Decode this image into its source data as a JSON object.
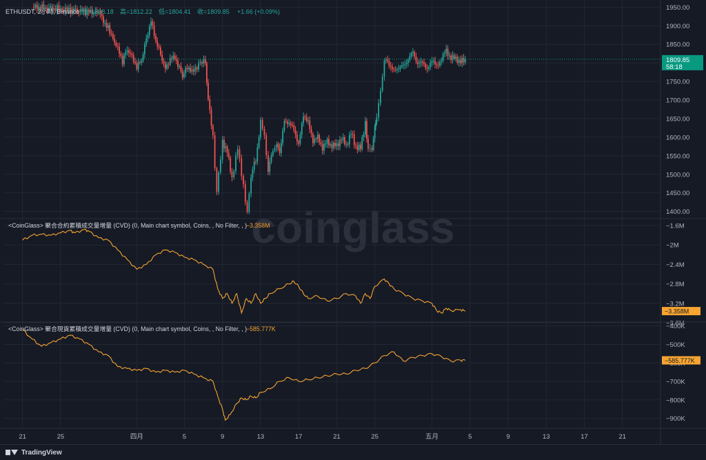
{
  "watermark": "coinglass",
  "footer": {
    "brand": "TradingView",
    "logo_icon": "tradingview-logo-icon"
  },
  "colors": {
    "background": "#161a25",
    "grid": "#232734",
    "text": "#b2b5be",
    "up": "#26a69a",
    "down": "#ef5350",
    "cvd_line": "#f7a531",
    "price_tag": "#089981"
  },
  "chart_data": [
    {
      "type": "candlestick",
      "legend": {
        "symbol": "ETHUSDT, 2小時, Binance",
        "open": "開=1808.18",
        "high": "高=1812.22",
        "low": "低=1804.41",
        "close": "收=1809.85",
        "change": "+1.66 (+0.09%)"
      },
      "last_price": "1809.85",
      "countdown": "58:18",
      "y_ticks": [
        "1950.00",
        "1900.00",
        "1850.00",
        "1800.00",
        "1750.00",
        "1700.00",
        "1650.00",
        "1600.00",
        "1550.00",
        "1500.00",
        "1450.00",
        "1400.00"
      ],
      "ylim": [
        1390,
        1960
      ],
      "points": [
        [
          1.0,
          1950
        ],
        [
          4.0,
          1945
        ],
        [
          8.0,
          1935
        ],
        [
          9.5,
          1870
        ],
        [
          10.5,
          1805
        ],
        [
          11.0,
          1840
        ],
        [
          12.0,
          1790
        ],
        [
          12.5,
          1810
        ],
        [
          13.5,
          1915
        ],
        [
          14.0,
          1860
        ],
        [
          15.0,
          1785
        ],
        [
          15.5,
          1810
        ],
        [
          16.0,
          1815
        ],
        [
          16.8,
          1765
        ],
        [
          17.3,
          1790
        ],
        [
          17.8,
          1775
        ],
        [
          18.5,
          1795
        ],
        [
          19.2,
          1805
        ],
        [
          19.5,
          1700
        ],
        [
          20.0,
          1600
        ],
        [
          20.4,
          1450
        ],
        [
          21.0,
          1590
        ],
        [
          21.5,
          1560
        ],
        [
          22.0,
          1490
        ],
        [
          22.6,
          1570
        ],
        [
          23.2,
          1470
        ],
        [
          23.6,
          1390
        ],
        [
          24.0,
          1500
        ],
        [
          24.5,
          1540
        ],
        [
          25.0,
          1640
        ],
        [
          25.4,
          1600
        ],
        [
          25.8,
          1510
        ],
        [
          26.3,
          1570
        ],
        [
          26.7,
          1580
        ],
        [
          27.0,
          1560
        ],
        [
          27.5,
          1640
        ],
        [
          28.0,
          1640
        ],
        [
          28.5,
          1620
        ],
        [
          29.0,
          1580
        ],
        [
          29.5,
          1660
        ],
        [
          30.0,
          1640
        ],
        [
          30.5,
          1590
        ],
        [
          31.0,
          1600
        ],
        [
          31.5,
          1570
        ],
        [
          32.0,
          1590
        ],
        [
          32.5,
          1575
        ],
        [
          33.0,
          1580
        ],
        [
          33.5,
          1595
        ],
        [
          34.0,
          1580
        ],
        [
          34.5,
          1610
        ],
        [
          35.0,
          1575
        ],
        [
          35.5,
          1570
        ],
        [
          36.0,
          1640
        ],
        [
          36.3,
          1560
        ],
        [
          36.7,
          1575
        ],
        [
          37.0,
          1620
        ],
        [
          37.2,
          1660
        ],
        [
          37.6,
          1720
        ],
        [
          38.0,
          1810
        ],
        [
          38.5,
          1800
        ],
        [
          39.0,
          1775
        ],
        [
          39.5,
          1790
        ],
        [
          40.0,
          1790
        ],
        [
          40.5,
          1810
        ],
        [
          41.0,
          1830
        ],
        [
          41.5,
          1795
        ],
        [
          42.0,
          1805
        ],
        [
          42.5,
          1780
        ],
        [
          43.0,
          1810
        ],
        [
          43.5,
          1790
        ],
        [
          44.0,
          1810
        ],
        [
          44.5,
          1835
        ],
        [
          45.0,
          1810
        ],
        [
          45.5,
          1815
        ],
        [
          46.0,
          1800
        ],
        [
          46.5,
          1810
        ]
      ]
    },
    {
      "type": "line",
      "legend": "<CoinGlass> 聚合合約累積成交量增量 (CVD) (0, Main chart symbol, Coins, , No Filter, , )",
      "legend_value": "−3.358M",
      "last_label": "−3.358M",
      "y_ticks": [
        "−1.6M",
        "−2M",
        "−2.4M",
        "−2.8M",
        "−3.2M",
        "−3.6M"
      ],
      "ylim": [
        -3.6,
        -1.5
      ],
      "points": [
        [
          0.0,
          -1.9
        ],
        [
          1.0,
          -1.8
        ],
        [
          2.0,
          -1.78
        ],
        [
          3.0,
          -1.8
        ],
        [
          4.0,
          -1.75
        ],
        [
          5.0,
          -1.7
        ],
        [
          5.5,
          -1.75
        ],
        [
          6.5,
          -1.68
        ],
        [
          7.0,
          -1.72
        ],
        [
          8.0,
          -1.85
        ],
        [
          9.0,
          -1.9
        ],
        [
          10.0,
          -2.1
        ],
        [
          11.0,
          -2.3
        ],
        [
          12.0,
          -2.5
        ],
        [
          13.0,
          -2.4
        ],
        [
          14.0,
          -2.2
        ],
        [
          15.0,
          -2.1
        ],
        [
          16.0,
          -2.15
        ],
        [
          17.0,
          -2.25
        ],
        [
          18.0,
          -2.3
        ],
        [
          19.0,
          -2.4
        ],
        [
          20.0,
          -2.5
        ],
        [
          20.5,
          -2.9
        ],
        [
          21.0,
          -3.1
        ],
        [
          21.5,
          -3.0
        ],
        [
          22.0,
          -3.2
        ],
        [
          22.5,
          -3.0
        ],
        [
          23.0,
          -3.4
        ],
        [
          23.5,
          -3.1
        ],
        [
          24.0,
          -3.2
        ],
        [
          24.5,
          -3.0
        ],
        [
          25.0,
          -3.2
        ],
        [
          25.5,
          -3.1
        ],
        [
          26.0,
          -3.0
        ],
        [
          27.0,
          -2.9
        ],
        [
          28.0,
          -2.8
        ],
        [
          28.5,
          -2.75
        ],
        [
          29.0,
          -2.85
        ],
        [
          29.5,
          -3.0
        ],
        [
          30.0,
          -3.1
        ],
        [
          31.0,
          -3.05
        ],
        [
          32.0,
          -3.15
        ],
        [
          33.0,
          -3.1
        ],
        [
          34.0,
          -3.0
        ],
        [
          35.0,
          -3.05
        ],
        [
          35.5,
          -3.2
        ],
        [
          36.0,
          -3.0
        ],
        [
          36.5,
          -3.1
        ],
        [
          37.0,
          -2.85
        ],
        [
          38.0,
          -2.7
        ],
        [
          38.5,
          -2.8
        ],
        [
          39.0,
          -2.9
        ],
        [
          40.0,
          -3.0
        ],
        [
          41.0,
          -3.1
        ],
        [
          42.0,
          -3.15
        ],
        [
          43.0,
          -3.2
        ],
        [
          43.5,
          -3.35
        ],
        [
          44.0,
          -3.4
        ],
        [
          44.5,
          -3.3
        ],
        [
          45.0,
          -3.35
        ],
        [
          46.0,
          -3.33
        ],
        [
          46.5,
          -3.36
        ]
      ]
    },
    {
      "type": "line",
      "legend": "<CoinGlass> 聚合現貨累積成交量增量 (CVD) (0, Main chart symbol, Coins, , No Filter, , )",
      "legend_value": "−585.777K",
      "last_label": "−585.777K",
      "y_ticks": [
        "−400K",
        "−500K",
        "−600K",
        "−700K",
        "−800K",
        "−900K"
      ],
      "ylim": [
        -950,
        -390
      ],
      "points": [
        [
          0.0,
          -420
        ],
        [
          1.0,
          -470
        ],
        [
          2.0,
          -510
        ],
        [
          3.0,
          -490
        ],
        [
          4.0,
          -470
        ],
        [
          5.0,
          -450
        ],
        [
          6.0,
          -470
        ],
        [
          7.0,
          -500
        ],
        [
          8.0,
          -540
        ],
        [
          9.0,
          -560
        ],
        [
          10.0,
          -620
        ],
        [
          11.0,
          -630
        ],
        [
          12.0,
          -640
        ],
        [
          13.0,
          -630
        ],
        [
          14.0,
          -650
        ],
        [
          15.0,
          -640
        ],
        [
          16.0,
          -650
        ],
        [
          17.0,
          -640
        ],
        [
          18.0,
          -660
        ],
        [
          19.0,
          -680
        ],
        [
          20.0,
          -700
        ],
        [
          20.5,
          -780
        ],
        [
          21.0,
          -850
        ],
        [
          21.3,
          -910
        ],
        [
          21.8,
          -880
        ],
        [
          22.5,
          -820
        ],
        [
          23.0,
          -790
        ],
        [
          23.5,
          -800
        ],
        [
          24.0,
          -780
        ],
        [
          24.5,
          -790
        ],
        [
          25.0,
          -760
        ],
        [
          26.0,
          -740
        ],
        [
          27.0,
          -700
        ],
        [
          28.0,
          -680
        ],
        [
          29.0,
          -700
        ],
        [
          30.0,
          -690
        ],
        [
          31.0,
          -680
        ],
        [
          32.0,
          -670
        ],
        [
          33.0,
          -660
        ],
        [
          34.0,
          -660
        ],
        [
          35.0,
          -640
        ],
        [
          36.0,
          -630
        ],
        [
          37.0,
          -600
        ],
        [
          38.0,
          -560
        ],
        [
          39.0,
          -540
        ],
        [
          40.0,
          -590
        ],
        [
          41.0,
          -570
        ],
        [
          42.0,
          -560
        ],
        [
          43.0,
          -550
        ],
        [
          44.0,
          -565
        ],
        [
          45.0,
          -590
        ],
        [
          46.0,
          -585
        ],
        [
          46.5,
          -586
        ]
      ]
    }
  ],
  "x_axis": {
    "labels": [
      "21",
      "25",
      "四月",
      "5",
      "9",
      "13",
      "17",
      "21",
      "25",
      "五月",
      "5",
      "9",
      "13",
      "17",
      "21"
    ],
    "positions": [
      0,
      4,
      12,
      17,
      21,
      25,
      29,
      33,
      37,
      43,
      47,
      51,
      55,
      59,
      63
    ],
    "xlim": [
      -2,
      67
    ]
  }
}
